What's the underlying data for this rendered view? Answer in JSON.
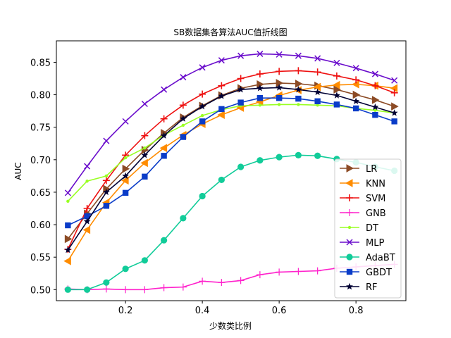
{
  "chart_data": {
    "type": "line",
    "title": "SB数据集各算法AUC值折线图",
    "xlabel": "少数类比例",
    "ylabel": "AUC",
    "xlim": [
      0.02,
      0.93
    ],
    "ylim": [
      0.483,
      0.883
    ],
    "xticks": [
      0.2,
      0.4,
      0.6,
      0.8
    ],
    "yticks": [
      0.5,
      0.55,
      0.6,
      0.65,
      0.7,
      0.75,
      0.8,
      0.85
    ],
    "grid": false,
    "legend_position": "lower-right",
    "x": [
      0.05,
      0.1,
      0.15,
      0.2,
      0.25,
      0.3,
      0.35,
      0.4,
      0.45,
      0.5,
      0.55,
      0.6,
      0.65,
      0.7,
      0.75,
      0.8,
      0.85,
      0.9
    ],
    "series": [
      {
        "name": "LR",
        "color": "#8c4b25",
        "marker": "triangle-right",
        "values": [
          0.578,
          0.617,
          0.655,
          0.686,
          0.715,
          0.741,
          0.765,
          0.783,
          0.799,
          0.81,
          0.816,
          0.818,
          0.817,
          0.814,
          0.808,
          0.8,
          0.792,
          0.782
        ]
      },
      {
        "name": "KNN",
        "color": "#ff8c00",
        "marker": "triangle-left",
        "values": [
          0.544,
          0.592,
          0.634,
          0.668,
          0.695,
          0.718,
          0.738,
          0.755,
          0.769,
          0.78,
          0.789,
          0.799,
          0.807,
          0.812,
          0.815,
          0.816,
          0.814,
          0.81
        ]
      },
      {
        "name": "SVM",
        "color": "#ee1111",
        "marker": "plus",
        "values": [
          0.562,
          0.625,
          0.668,
          0.707,
          0.737,
          0.763,
          0.784,
          0.801,
          0.814,
          0.825,
          0.832,
          0.836,
          0.837,
          0.835,
          0.829,
          0.823,
          0.814,
          0.803
        ]
      },
      {
        "name": "GNB",
        "color": "#ff22cc",
        "marker": "thin-plus",
        "values": [
          0.501,
          0.5,
          0.501,
          0.5,
          0.5,
          0.503,
          0.504,
          0.513,
          0.511,
          0.514,
          0.523,
          0.527,
          0.528,
          0.529,
          0.533,
          0.535,
          0.537,
          0.539
        ]
      },
      {
        "name": "DT",
        "color": "#99ff22",
        "marker": "dot",
        "values": [
          0.636,
          0.667,
          0.675,
          0.703,
          0.718,
          0.738,
          0.753,
          0.768,
          0.777,
          0.783,
          0.784,
          0.785,
          0.785,
          0.784,
          0.783,
          0.779,
          0.776,
          0.772
        ]
      },
      {
        "name": "MLP",
        "color": "#6a0dcc",
        "marker": "x",
        "values": [
          0.649,
          0.69,
          0.729,
          0.759,
          0.786,
          0.808,
          0.827,
          0.842,
          0.853,
          0.86,
          0.863,
          0.862,
          0.86,
          0.856,
          0.849,
          0.841,
          0.832,
          0.822
        ]
      },
      {
        "name": "AdaBT",
        "color": "#11cc99",
        "marker": "circle",
        "values": [
          0.5,
          0.5,
          0.511,
          0.532,
          0.545,
          0.576,
          0.61,
          0.644,
          0.669,
          0.689,
          0.699,
          0.704,
          0.707,
          0.706,
          0.701,
          0.696,
          0.689,
          0.683
        ]
      },
      {
        "name": "GBDT",
        "color": "#0a3cc8",
        "marker": "square",
        "values": [
          0.599,
          0.613,
          0.629,
          0.649,
          0.674,
          0.706,
          0.735,
          0.759,
          0.778,
          0.788,
          0.795,
          0.795,
          0.794,
          0.79,
          0.785,
          0.779,
          0.769,
          0.759
        ]
      },
      {
        "name": "RF",
        "color": "#000033",
        "marker": "star",
        "values": [
          0.561,
          0.605,
          0.65,
          0.675,
          0.707,
          0.737,
          0.763,
          0.782,
          0.798,
          0.808,
          0.81,
          0.811,
          0.808,
          0.804,
          0.799,
          0.79,
          0.781,
          0.772
        ]
      }
    ]
  }
}
